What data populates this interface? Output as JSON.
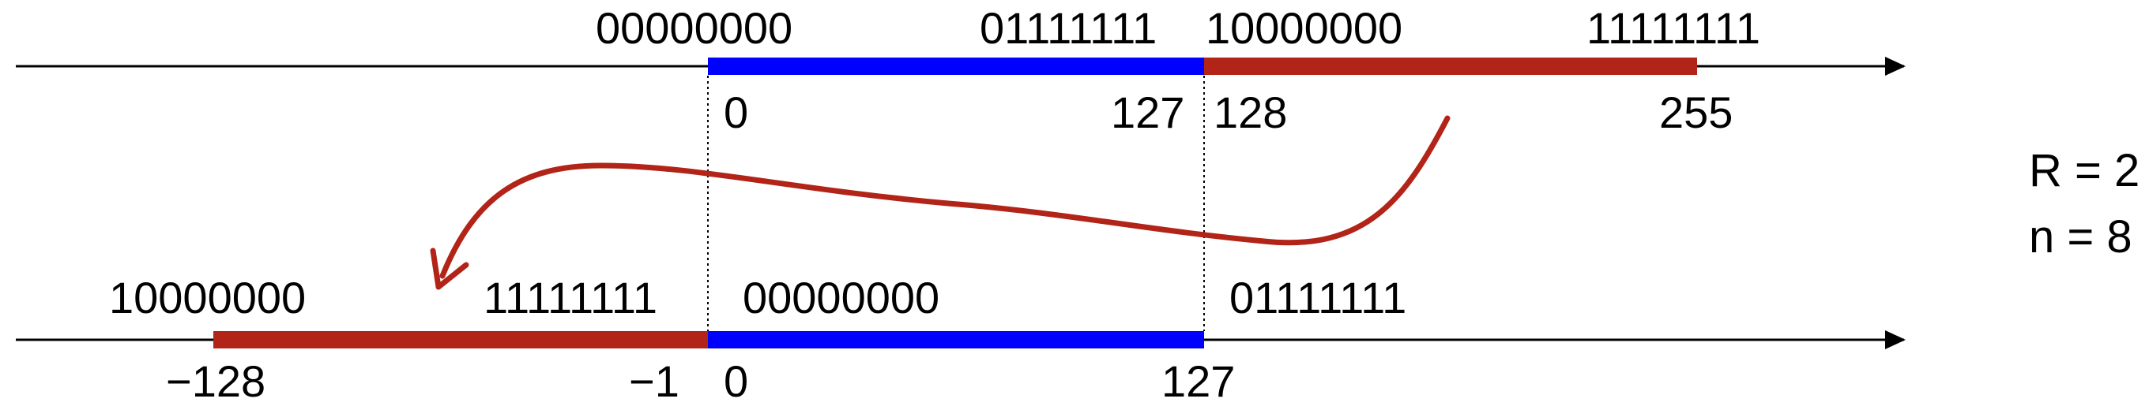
{
  "colors": {
    "positive": "#0000ff",
    "negative": "#b22418",
    "axis": "#000000"
  },
  "top_line": {
    "bits": [
      "00000000",
      "01111111",
      "10000000",
      "11111111"
    ],
    "values": [
      "0",
      "127",
      "128",
      "255"
    ]
  },
  "bottom_line": {
    "bits": [
      "10000000",
      "11111111",
      "00000000",
      "01111111"
    ],
    "values": [
      "−128",
      "−1",
      "0",
      "127"
    ]
  },
  "params": {
    "radix": "R = 2",
    "digits": "n = 8"
  }
}
